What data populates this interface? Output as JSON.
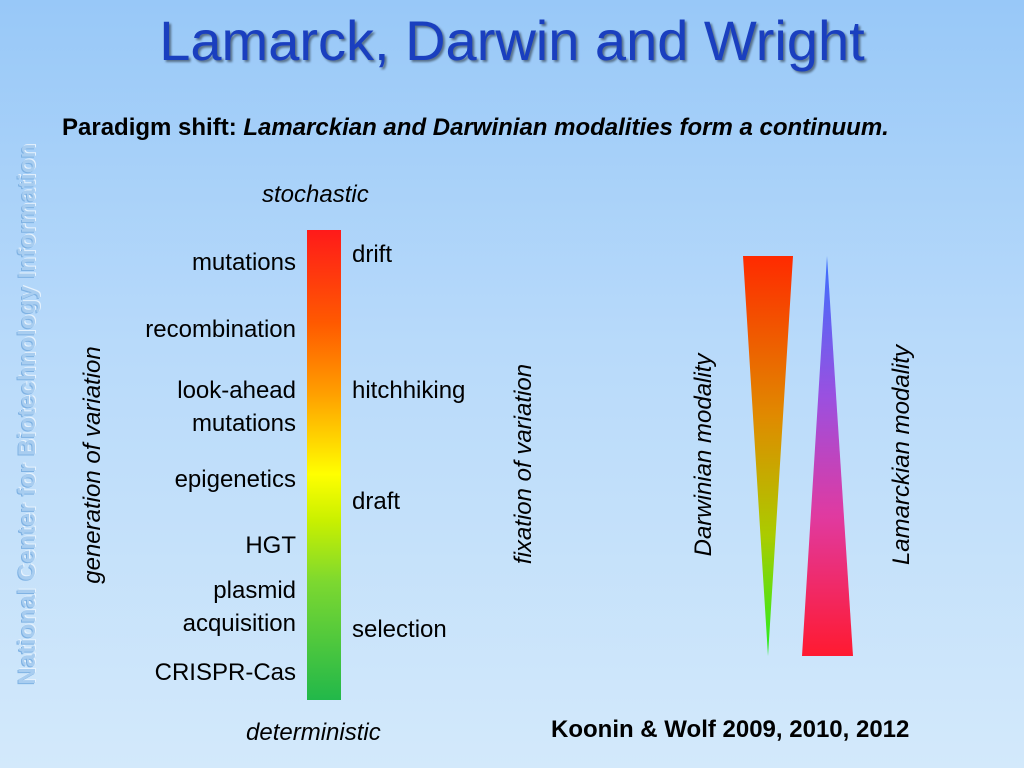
{
  "slide": {
    "title": "Lamarck, Darwin and Wright",
    "side_watermark": "National Center for Biotechnology Information",
    "paradigm_prefix": "Paradigm shift: ",
    "paradigm_text": "Lamarckian and Darwinian modalities form a continuum.",
    "top_label": "stochastic",
    "bottom_label": "deterministic",
    "left_axis_label": "generation of variation",
    "middle_axis_label": "fixation of variation",
    "darwinian_label": "Darwinian modality",
    "lamarckian_label": "Lamarckian modality",
    "reference": "Koonin & Wolf 2009, 2010, 2012"
  },
  "generation_items": [
    {
      "lines": [
        "mutations"
      ]
    },
    {
      "lines": [
        "recombination"
      ]
    },
    {
      "lines": [
        "look-ahead",
        "mutations"
      ]
    },
    {
      "lines": [
        "epigenetics"
      ]
    },
    {
      "lines": [
        "HGT"
      ]
    },
    {
      "lines": [
        "plasmid",
        "acquisition"
      ]
    },
    {
      "lines": [
        "CRISPR-Cas"
      ]
    }
  ],
  "fixation_items": [
    "drift",
    "hitchhiking",
    "draft",
    "selection"
  ],
  "colors": {
    "title": "#1a3fbf",
    "bar_top": "#ff1a1a",
    "bar_middle": "#ffff00",
    "bar_bottom": "#22b84a",
    "darwinian_top": "#ff2a00",
    "darwinian_bottom": "#22ee22",
    "lamarckian_top": "#3a70ff",
    "lamarckian_bottom": "#ff1a30"
  }
}
